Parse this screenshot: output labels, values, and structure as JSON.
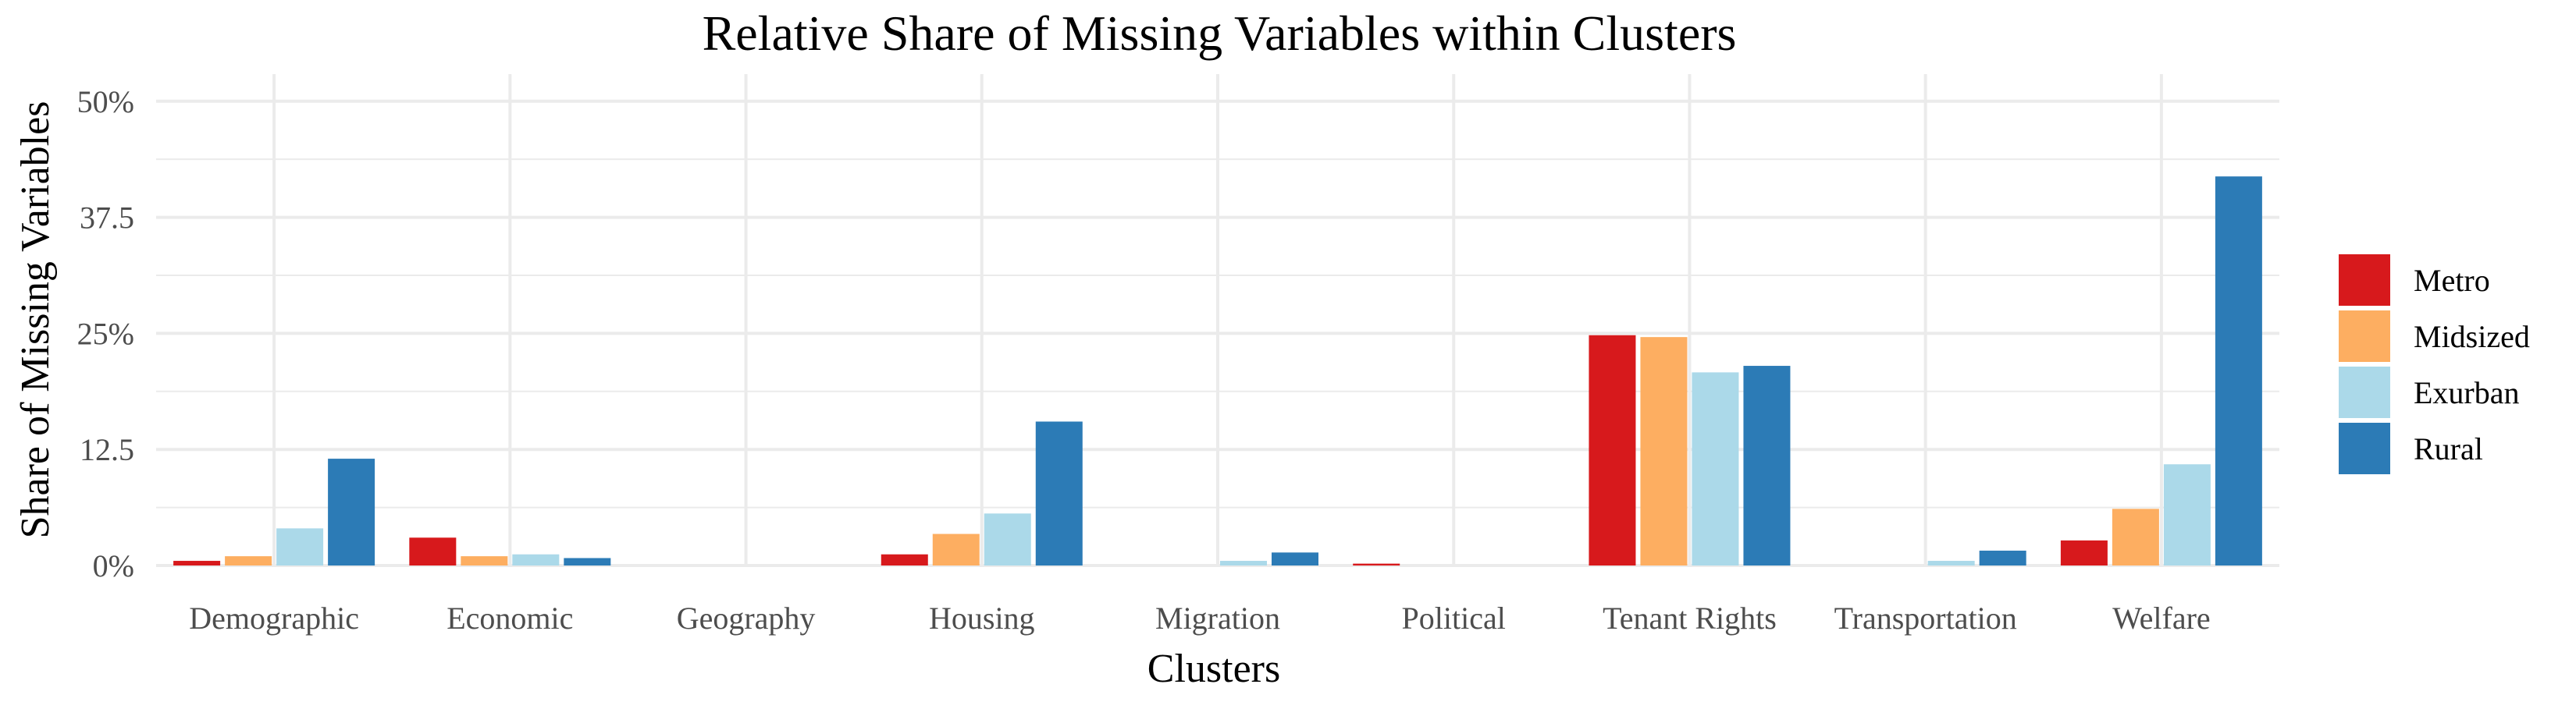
{
  "chart_data": {
    "type": "bar",
    "title": "Relative Share of Missing Variables within Clusters",
    "xlabel": "Clusters",
    "ylabel": "Share of Missing Variables",
    "categories": [
      "Demographic",
      "Economic",
      "Geography",
      "Housing",
      "Migration",
      "Political",
      "Tenant Rights",
      "Transportation",
      "Welfare"
    ],
    "ylim": [
      0,
      52.5
    ],
    "y_ticks": [
      0,
      12.5,
      25,
      37.5,
      50
    ],
    "y_tick_labels": [
      "0%",
      "12.5",
      "25%",
      "37.5",
      "50%"
    ],
    "grid": true,
    "legend_position": "right",
    "series": [
      {
        "name": "Metro",
        "color": "#d7191c",
        "values": [
          0.5,
          3.0,
          0,
          1.2,
          0,
          0.2,
          24.8,
          0,
          2.7
        ]
      },
      {
        "name": "Midsized",
        "color": "#fdae61",
        "values": [
          1.0,
          1.0,
          0,
          3.4,
          0,
          0,
          24.6,
          0,
          6.1
        ]
      },
      {
        "name": "Exurban",
        "color": "#abd9e9",
        "values": [
          4.0,
          1.2,
          0,
          5.6,
          0.5,
          0,
          20.8,
          0.5,
          10.9
        ]
      },
      {
        "name": "Rural",
        "color": "#2c7bb6",
        "values": [
          11.5,
          0.8,
          0,
          15.5,
          1.4,
          0,
          21.5,
          1.6,
          41.9
        ]
      }
    ]
  }
}
